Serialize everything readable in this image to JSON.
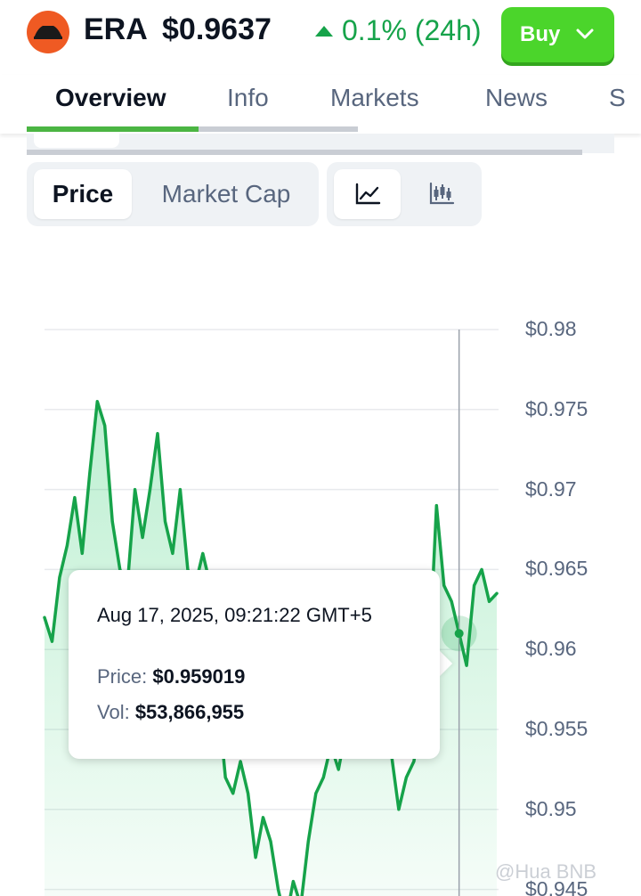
{
  "header": {
    "coin_symbol": "ERA",
    "price": "$0.9637",
    "change": "0.1% (24h)",
    "buy_label": "Buy",
    "accent_green": "#16a34a",
    "buy_color": "#4bd52b",
    "logo_color": "#ef5a23"
  },
  "tabs": [
    {
      "label": "Overview",
      "active": true
    },
    {
      "label": "Info"
    },
    {
      "label": "Markets"
    },
    {
      "label": "News"
    }
  ],
  "chart_toggle": {
    "price_label": "Price",
    "market_cap_label": "Market Cap",
    "line_icon": "line-chart-icon",
    "candle_icon": "candlestick-icon"
  },
  "tooltip": {
    "date": "Aug 17, 2025, 09:21:22 GMT+5",
    "price_label": "Price:",
    "price_value": "$0.959019",
    "vol_label": "Vol:",
    "vol_value": "$53,866,955"
  },
  "watermark": "@Hua BNB",
  "chart_data": {
    "type": "area",
    "ylim": [
      0.945,
      0.98
    ],
    "yticks": [
      "$0.98",
      "$0.975",
      "$0.97",
      "$0.965",
      "$0.96",
      "$0.955",
      "$0.95",
      "$0.945"
    ],
    "values": [
      0.962,
      0.9605,
      0.9645,
      0.9665,
      0.9695,
      0.966,
      0.971,
      0.9755,
      0.974,
      0.968,
      0.965,
      0.964,
      0.97,
      0.967,
      0.97,
      0.9735,
      0.968,
      0.966,
      0.97,
      0.965,
      0.964,
      0.966,
      0.964,
      0.957,
      0.952,
      0.951,
      0.953,
      0.951,
      0.947,
      0.9495,
      0.948,
      0.945,
      0.943,
      0.9455,
      0.944,
      0.948,
      0.951,
      0.952,
      0.954,
      0.9525,
      0.955,
      0.958,
      0.96,
      0.959,
      0.956,
      0.958,
      0.9535,
      0.95,
      0.952,
      0.953,
      0.956,
      0.959,
      0.969,
      0.964,
      0.963,
      0.961,
      0.959,
      0.964,
      0.965,
      0.963,
      0.9635
    ],
    "highlight_index": 55
  }
}
